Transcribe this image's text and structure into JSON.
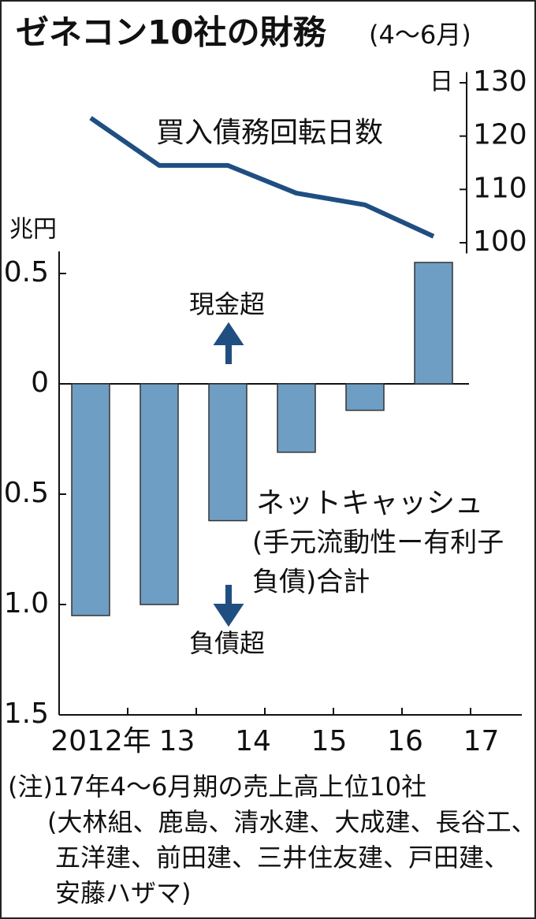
{
  "chart_data": {
    "type": "bar",
    "title": "ゼネコン10社の財務",
    "subtitle": "(4〜6月)",
    "y_label": "兆円",
    "y2_label": "日",
    "categories": [
      "2012年",
      "13",
      "14",
      "15",
      "16",
      "17"
    ],
    "series": [
      {
        "name": "ネットキャッシュ",
        "type": "bar",
        "color": "#6f9ec4",
        "values": [
          -1.05,
          -1.0,
          -0.62,
          -0.31,
          -0.12,
          0.55
        ]
      },
      {
        "name": "買入債務回転日数",
        "type": "line",
        "axis": "y2",
        "color": "#1f4f82",
        "values": [
          123.4,
          114.5,
          114.5,
          109.3,
          107.1,
          101.2
        ]
      }
    ],
    "annotations": [
      "現金超",
      "負債超",
      "(手元流動性ー有利子",
      "負債)合計"
    ],
    "ylim": [
      -1.5,
      0.6
    ],
    "yticks": [
      0.5,
      0,
      {
        "value": -0.5,
        "label": "0.5"
      },
      {
        "value": -1,
        "label": "1.0"
      },
      {
        "value": -1.5,
        "label": "1.5"
      }
    ],
    "y2lim": [
      98,
      132
    ],
    "y2ticks": [
      100,
      110,
      120,
      130
    ],
    "notes": [
      "(注)17年4〜6月期の売上高上位10社",
      "(大林組、鹿島、清水建、大成建、長谷工、",
      "五洋建、前田建、三井住友建、戸田建、",
      "安藤ハザマ)"
    ]
  }
}
